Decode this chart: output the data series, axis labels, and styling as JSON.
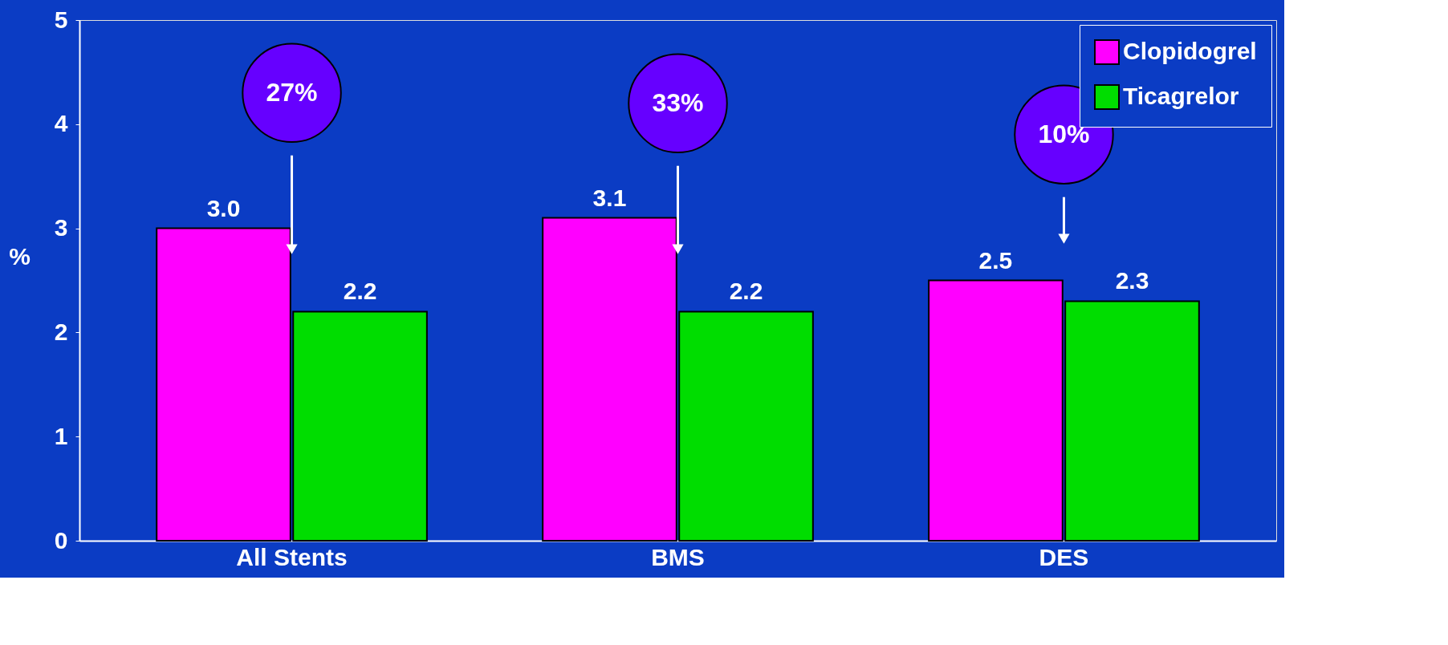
{
  "chart_data": {
    "type": "bar",
    "ylabel": "%",
    "categories": [
      "All Stents",
      "BMS",
      "DES"
    ],
    "series": [
      {
        "name": "Clopidogrel",
        "color": "#ff00ff",
        "values": [
          3.0,
          3.1,
          2.5
        ],
        "value_labels": [
          "3.0",
          "3.1",
          "2.5"
        ]
      },
      {
        "name": "Ticagrelor",
        "color": "#00dd00",
        "values": [
          2.2,
          2.2,
          2.3
        ],
        "value_labels": [
          "2.2",
          "2.2",
          "2.3"
        ]
      }
    ],
    "ylim": [
      0,
      5
    ],
    "yticks": [
      0,
      1,
      2,
      3,
      4,
      5
    ],
    "grid": false,
    "legend": "top right",
    "annotations": [
      "27%",
      "33%",
      "10%"
    ]
  }
}
